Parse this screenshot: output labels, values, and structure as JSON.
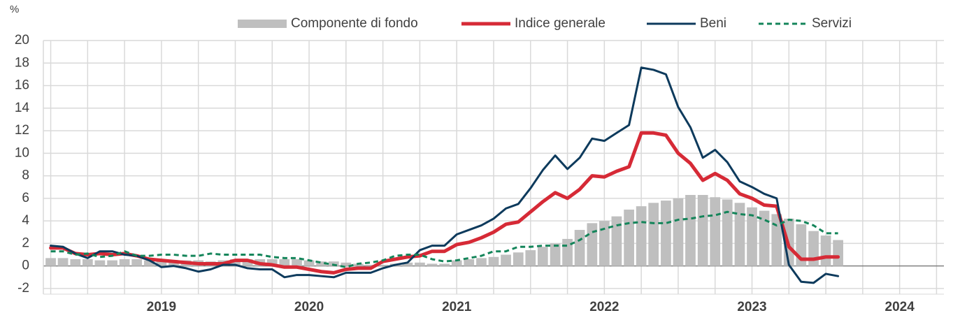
{
  "chart_data": {
    "type": "combo",
    "y_label": "%",
    "x": [
      2018.25,
      2018.333,
      2018.417,
      2018.5,
      2018.583,
      2018.667,
      2018.75,
      2018.833,
      2018.917,
      2019,
      2019.083,
      2019.167,
      2019.25,
      2019.333,
      2019.417,
      2019.5,
      2019.583,
      2019.667,
      2019.75,
      2019.833,
      2019.917,
      2020,
      2020.083,
      2020.167,
      2020.25,
      2020.333,
      2020.417,
      2020.5,
      2020.583,
      2020.667,
      2020.75,
      2020.833,
      2020.917,
      2021,
      2021.083,
      2021.167,
      2021.25,
      2021.333,
      2021.417,
      2021.5,
      2021.583,
      2021.667,
      2021.75,
      2021.833,
      2021.917,
      2022,
      2022.083,
      2022.167,
      2022.25,
      2022.333,
      2022.417,
      2022.5,
      2022.583,
      2022.667,
      2022.75,
      2022.833,
      2022.917,
      2023,
      2023.083,
      2023.167,
      2023.25,
      2023.333,
      2023.417,
      2023.5,
      2023.583
    ],
    "series": [
      {
        "name": "Componente di fondo",
        "type": "bar",
        "color": "#bfbfbf",
        "values": [
          0.7,
          0.7,
          0.6,
          0.6,
          0.5,
          0.5,
          0.6,
          0.6,
          0.5,
          0.4,
          0.4,
          0.5,
          0.5,
          0.4,
          0.5,
          0.6,
          0.6,
          0.6,
          0.6,
          0.6,
          0.6,
          0.5,
          0.4,
          0.4,
          0.3,
          0.2,
          0.1,
          0.1,
          0.2,
          0.3,
          0.3,
          0.2,
          0.2,
          0.5,
          0.6,
          0.7,
          0.8,
          1.0,
          1.2,
          1.4,
          1.7,
          2.0,
          2.4,
          3.2,
          3.8,
          4.0,
          4.4,
          5.0,
          5.3,
          5.6,
          5.8,
          6.0,
          6.3,
          6.3,
          6.1,
          5.9,
          5.6,
          5.2,
          4.9,
          4.6,
          4.2,
          3.7,
          3.1,
          2.7,
          2.3
        ]
      },
      {
        "name": "Indice generale",
        "type": "line",
        "color": "#d62a36",
        "width": 5,
        "values": [
          1.6,
          1.6,
          1.1,
          1.0,
          1.1,
          1.0,
          1.1,
          0.9,
          0.6,
          0.5,
          0.4,
          0.3,
          0.2,
          0.2,
          0.2,
          0.5,
          0.5,
          0.2,
          0.1,
          -0.1,
          -0.1,
          -0.3,
          -0.5,
          -0.6,
          -0.3,
          -0.2,
          -0.2,
          0.4,
          0.6,
          0.8,
          0.9,
          1.3,
          1.3,
          1.9,
          2.1,
          2.5,
          3.0,
          3.7,
          3.9,
          4.8,
          5.7,
          6.5,
          6.0,
          6.8,
          8.0,
          7.9,
          8.4,
          8.8,
          11.8,
          11.8,
          11.6,
          10.0,
          9.1,
          7.6,
          8.2,
          7.6,
          6.4,
          6.0,
          5.4,
          5.3,
          1.7,
          0.6,
          0.6,
          0.8,
          0.8
        ]
      },
      {
        "name": "Beni",
        "type": "line",
        "color": "#0d3a5c",
        "width": 3,
        "values": [
          1.8,
          1.7,
          1.1,
          0.7,
          1.3,
          1.3,
          1.0,
          0.9,
          0.5,
          -0.1,
          0.0,
          -0.2,
          -0.5,
          -0.3,
          0.1,
          0.1,
          -0.2,
          -0.3,
          -0.3,
          -1.0,
          -0.8,
          -0.8,
          -0.9,
          -1.0,
          -0.6,
          -0.6,
          -0.6,
          -0.2,
          0.1,
          0.3,
          1.4,
          1.8,
          1.8,
          2.8,
          3.2,
          3.6,
          4.2,
          5.1,
          5.5,
          6.9,
          8.5,
          9.8,
          8.6,
          9.6,
          11.3,
          11.1,
          11.8,
          12.5,
          17.6,
          17.4,
          17.0,
          14.1,
          12.3,
          9.6,
          10.3,
          9.2,
          7.5,
          7.0,
          6.4,
          6.0,
          0.1,
          -1.4,
          -1.5,
          -0.7,
          -0.9
        ]
      },
      {
        "name": "Servizi",
        "type": "line",
        "color": "#14855a",
        "width": 3,
        "dashed": true,
        "values": [
          1.3,
          1.3,
          1.0,
          1.1,
          0.8,
          0.9,
          1.3,
          0.9,
          0.9,
          1.0,
          1.0,
          0.9,
          0.9,
          1.1,
          1.0,
          1.0,
          1.0,
          1.0,
          0.8,
          0.7,
          0.7,
          0.5,
          0.3,
          0.1,
          -0.1,
          0.2,
          0.3,
          0.5,
          0.9,
          1.0,
          1.0,
          0.6,
          0.4,
          0.5,
          0.7,
          0.9,
          1.3,
          1.3,
          1.7,
          1.7,
          1.8,
          1.8,
          1.8,
          2.3,
          3.0,
          3.3,
          3.6,
          3.8,
          3.9,
          3.8,
          3.8,
          4.1,
          4.2,
          4.4,
          4.5,
          4.8,
          4.6,
          4.5,
          4.1,
          3.6,
          4.1,
          4.0,
          3.6,
          2.9,
          2.9
        ]
      }
    ],
    "xlim": [
      2018.2,
      2024.3
    ],
    "xticks": [
      2019,
      2020,
      2021,
      2022,
      2023,
      2024
    ],
    "xminor_ticks": [
      2018.25,
      2018.5,
      2018.75,
      2019,
      2019.25,
      2019.5,
      2019.75,
      2020,
      2020.25,
      2020.5,
      2020.75,
      2021,
      2021.25,
      2021.5,
      2021.75,
      2022,
      2022.25,
      2022.5,
      2022.75,
      2023,
      2023.25,
      2023.5,
      2023.75,
      2024,
      2024.25
    ],
    "ylim": [
      -2.5,
      20
    ],
    "yticks": [
      -2,
      0,
      2,
      4,
      6,
      8,
      10,
      12,
      14,
      16,
      18,
      20
    ],
    "grid": true,
    "legend": "top"
  }
}
